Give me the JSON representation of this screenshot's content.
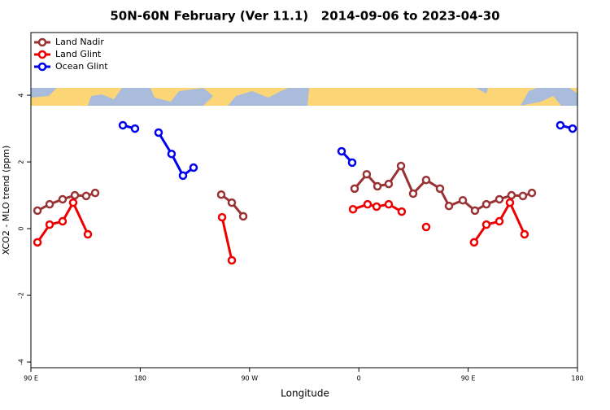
{
  "chart_data": {
    "type": "line",
    "title": "50N-60N February (Ver 11.1)   2014-09-06 to 2023-04-30",
    "xlabel": "Longitude",
    "ylabel": "XCO2 - MLO trend (ppm)",
    "xlim": [
      90,
      540
    ],
    "ylim": [
      -4.17,
      5.88
    ],
    "xticks": [
      {
        "value": 90,
        "label": "90 E"
      },
      180,
      {
        "value": 270,
        "label": "90 W"
      },
      {
        "value": 360,
        "label": "0"
      },
      {
        "value": 450,
        "label": "90 E"
      },
      {
        "value": 540,
        "label": "180"
      }
    ],
    "yticks": [
      4,
      2,
      0,
      -2,
      -4
    ],
    "legend": "top-left",
    "series": [
      {
        "name": "Land Nadir",
        "color": "#993333",
        "x": [
          95.4,
          105.4,
          116.1,
          126.2,
          135.5,
          142.9,
          null,
          246.7,
          255.4,
          264.8,
          null,
          356.5,
          366.5,
          375.3,
          384.6,
          394.7,
          404.7,
          415.4,
          426.8,
          434.2,
          445.6,
          455.6,
          465.0,
          475.7,
          485.7,
          495.1,
          502.5
        ],
        "values": [
          0.54,
          0.73,
          0.88,
          1.0,
          0.98,
          1.07,
          null,
          1.02,
          0.78,
          0.37,
          null,
          1.2,
          1.63,
          1.27,
          1.34,
          1.88,
          1.05,
          1.46,
          1.2,
          0.68,
          0.85,
          0.54,
          0.73,
          0.88,
          1.0,
          0.98,
          1.07
        ]
      },
      {
        "name": "Land Glint",
        "color": "#ee0000",
        "x": [
          95.4,
          105.4,
          116.1,
          124.8,
          136.9,
          null,
          247.4,
          255.4,
          null,
          355.2,
          367.2,
          374.6,
          384.6,
          395.3,
          null,
          415.4,
          null,
          454.9,
          465.0,
          475.7,
          484.4,
          496.4
        ],
        "values": [
          -0.41,
          0.12,
          0.22,
          0.78,
          -0.17,
          null,
          0.34,
          -0.95,
          null,
          0.58,
          0.73,
          0.66,
          0.73,
          0.51,
          null,
          0.05,
          null,
          -0.41,
          0.12,
          0.22,
          0.78,
          -0.17
        ]
      },
      {
        "name": "Ocean Glint",
        "color": "#0000ee",
        "x": [
          165.7,
          175.7,
          null,
          195.1,
          205.8,
          215.2,
          223.9,
          null,
          345.8,
          354.5,
          null,
          525.9,
          536.0
        ],
        "values": [
          3.1,
          3.0,
          null,
          2.88,
          2.24,
          1.59,
          1.83,
          null,
          2.32,
          1.98,
          null,
          3.1,
          3.0
        ]
      }
    ]
  }
}
